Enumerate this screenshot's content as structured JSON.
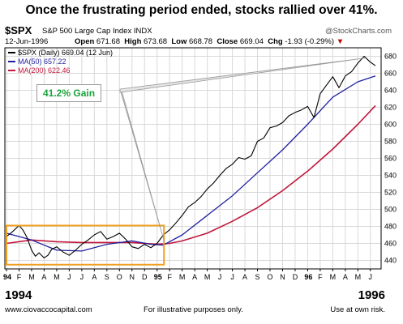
{
  "header": {
    "headline": "Once the frustrating period ended, stocks rallied over 41%.",
    "ticker": "$SPX",
    "ticker_desc": "S&P 500 Large Cap Index  INDX",
    "watermark": "@StockCharts.com",
    "date": "12-Jun-1996",
    "open_label": "Open",
    "open_value": "671.68",
    "high_label": "High",
    "high_value": "673.68",
    "low_label": "Low",
    "low_value": "668.78",
    "close_label": "Close",
    "close_value": "669.04",
    "chg_label": "Chg",
    "chg_value": "-1.93 (-0.29%)",
    "chg_arrow": "▼"
  },
  "legend": {
    "spx": "$SPX (Daily) 669.04 (12 Jun)",
    "ma50": "MA(50) 657.22",
    "ma200": "MA(200) 622.46"
  },
  "annotation": {
    "gain_label": "41.2% Gain"
  },
  "footer": {
    "year_left": "1994",
    "year_right": "1996",
    "website": "www.ciovaccocapital.com",
    "disclaimer": "For illustrative purposes only.",
    "risk": "Use at own risk."
  },
  "colors": {
    "price_line": "#000000",
    "ma50": "#1f1f9e",
    "ma200": "#c0163a",
    "highlight_box": "#f0a020",
    "gain_text": "#1aa33b",
    "grid": "#d9d9d9"
  },
  "chart_data": {
    "type": "line",
    "title": "$SPX S&P 500 Large Cap Index",
    "ylim": [
      430,
      690
    ],
    "y_ticks": [
      440,
      460,
      480,
      500,
      520,
      540,
      560,
      580,
      600,
      620,
      640,
      660,
      680
    ],
    "x_ticks": [
      {
        "label": "94",
        "bold": true
      },
      {
        "label": "F"
      },
      {
        "label": "M"
      },
      {
        "label": "A"
      },
      {
        "label": "M"
      },
      {
        "label": "J"
      },
      {
        "label": "J"
      },
      {
        "label": "A"
      },
      {
        "label": "S"
      },
      {
        "label": "O"
      },
      {
        "label": "N"
      },
      {
        "label": "D"
      },
      {
        "label": "95",
        "bold": true
      },
      {
        "label": "F"
      },
      {
        "label": "M"
      },
      {
        "label": "A"
      },
      {
        "label": "M"
      },
      {
        "label": "J"
      },
      {
        "label": "J"
      },
      {
        "label": "A"
      },
      {
        "label": "S"
      },
      {
        "label": "O"
      },
      {
        "label": "N"
      },
      {
        "label": "D"
      },
      {
        "label": "96",
        "bold": true
      },
      {
        "label": "F"
      },
      {
        "label": "M"
      },
      {
        "label": "A"
      },
      {
        "label": "M"
      },
      {
        "label": "J"
      }
    ],
    "grid": true,
    "legend_position": "top-left",
    "series": [
      {
        "name": "$SPX (Daily) 669.04 (12 Jun)",
        "x": [
          0.0,
          0.5,
          1.0,
          1.3,
          1.6,
          2.0,
          2.3,
          2.6,
          3.0,
          3.3,
          3.6,
          4.0,
          4.5,
          5.0,
          5.5,
          6.0,
          6.5,
          7.0,
          7.5,
          8.0,
          8.5,
          9.0,
          9.5,
          10.0,
          10.5,
          11.0,
          11.5,
          12.0,
          12.5,
          13.0,
          13.5,
          14.0,
          14.5,
          15.0,
          15.5,
          16.0,
          16.5,
          17.0,
          17.5,
          18.0,
          18.5,
          19.0,
          19.5,
          20.0,
          20.5,
          21.0,
          21.5,
          22.0,
          22.5,
          23.0,
          23.5,
          24.0,
          24.5,
          25.0,
          25.5,
          26.0,
          26.5,
          27.0,
          27.5,
          28.0,
          28.5,
          29.0,
          29.4
        ],
        "values": [
          468,
          474,
          481,
          476,
          468,
          452,
          445,
          449,
          443,
          446,
          453,
          456,
          450,
          446,
          452,
          459,
          464,
          470,
          474,
          465,
          468,
          472,
          465,
          456,
          454,
          459,
          455,
          460,
          470,
          476,
          484,
          493,
          503,
          508,
          515,
          524,
          531,
          540,
          548,
          553,
          561,
          559,
          563,
          580,
          584,
          596,
          598,
          602,
          610,
          614,
          617,
          621,
          608,
          636,
          646,
          656,
          643,
          657,
          662,
          672,
          680,
          673,
          669
        ]
      },
      {
        "name": "MA(50) 657.22",
        "x": [
          0,
          2,
          4,
          6,
          8,
          10,
          11.5,
          12.5,
          14,
          16,
          18,
          20,
          22,
          24,
          26,
          28,
          29.4
        ],
        "values": [
          472,
          464,
          452,
          451,
          459,
          463,
          459,
          458,
          470,
          493,
          516,
          543,
          570,
          600,
          632,
          650,
          657
        ]
      },
      {
        "name": "MA(200) 622.46",
        "x": [
          0,
          2,
          4,
          6,
          8,
          10,
          12,
          13,
          14,
          16,
          18,
          20,
          22,
          24,
          26,
          28,
          29.4
        ],
        "values": [
          460,
          464,
          462,
          461,
          461,
          461,
          459,
          460,
          463,
          472,
          486,
          502,
          522,
          545,
          571,
          600,
          622
        ]
      }
    ]
  }
}
